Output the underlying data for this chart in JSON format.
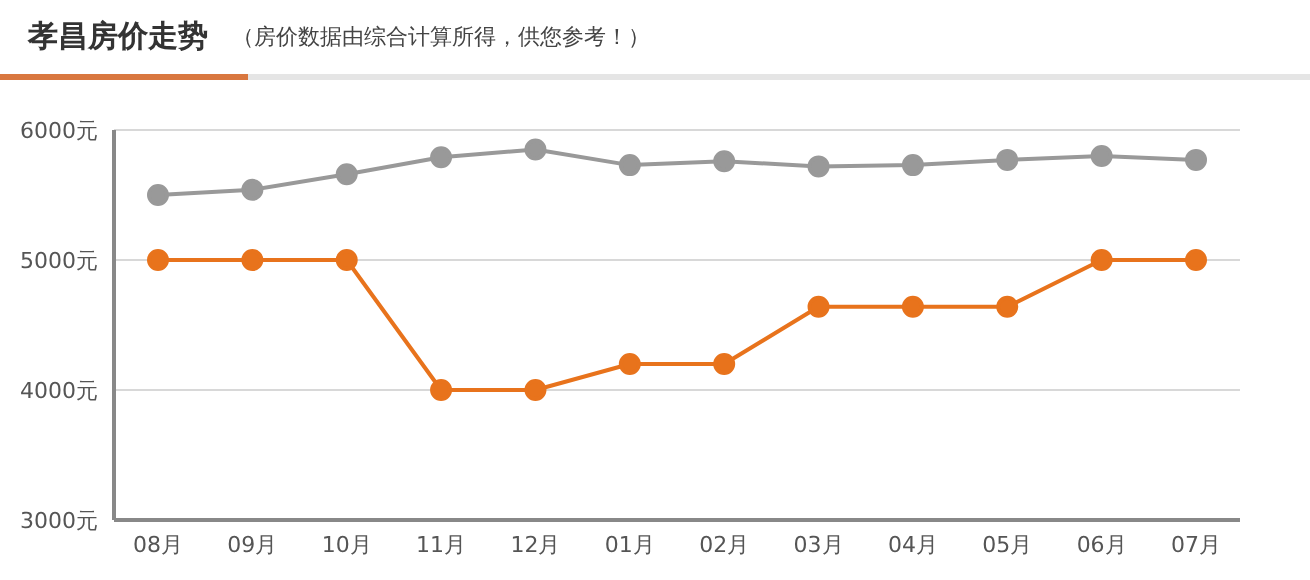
{
  "chart_data": {
    "type": "line",
    "title": "孝昌房价走势",
    "subtitle": "（房价数据由综合计算所得，供您参考！）",
    "categories": [
      "08月",
      "09月",
      "10月",
      "11月",
      "12月",
      "01月",
      "02月",
      "03月",
      "04月",
      "05月",
      "06月",
      "07月"
    ],
    "series": [
      {
        "color": "#999999",
        "values": [
          5500,
          5540,
          5660,
          5790,
          5850,
          5730,
          5760,
          5720,
          5730,
          5770,
          5800,
          5770
        ]
      },
      {
        "color": "#e8731c",
        "values": [
          5000,
          5000,
          5000,
          4000,
          4000,
          4200,
          4200,
          4640,
          4640,
          4640,
          5000,
          5000
        ]
      }
    ],
    "ylim": [
      3000,
      6000
    ],
    "yticks": [
      {
        "value": 3000,
        "label": "3000元"
      },
      {
        "value": 4000,
        "label": "4000元"
      },
      {
        "value": 5000,
        "label": "5000元"
      },
      {
        "value": 6000,
        "label": "6000元"
      }
    ],
    "grid": "y",
    "marker": "circle",
    "line_style": "solid",
    "legend": false
  }
}
